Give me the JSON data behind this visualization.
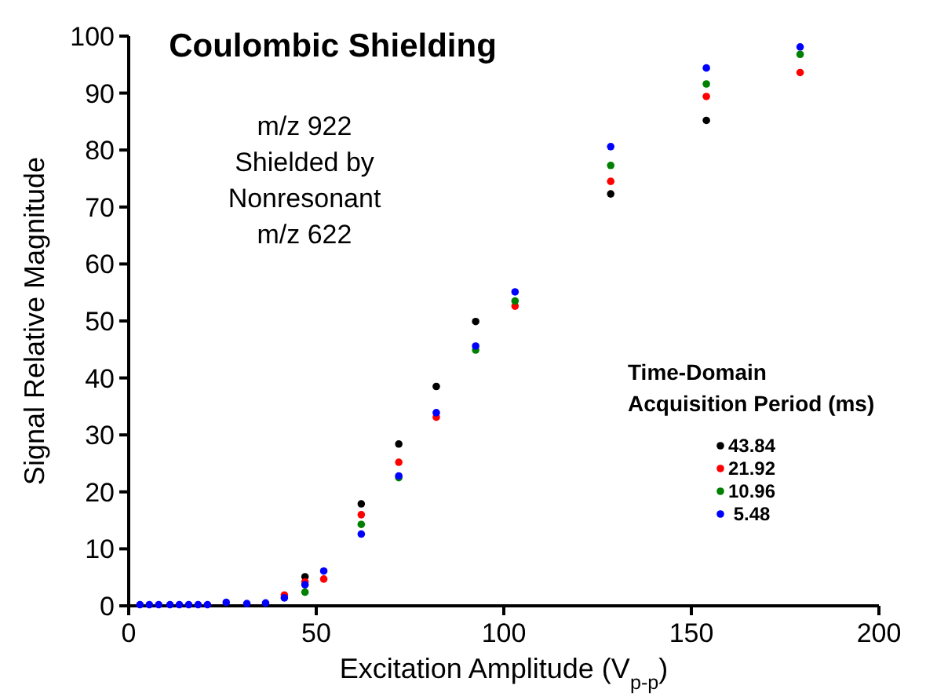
{
  "chart_data": {
    "type": "scatter",
    "title": "Coulombic Shielding",
    "xlabel": "Excitation Amplitude (V$_{p-p}$)",
    "ylabel": "Signal Relative Magnitude",
    "legend_title": "Time-Domain\nAcquisition Period (ms)",
    "legend": "right",
    "marker": "circle",
    "grid": false,
    "annotations": [
      "m/z 922\nShielded by\nNonresonant\nm/z 622"
    ],
    "x": [
      3,
      5.5,
      8,
      11,
      13.5,
      16,
      18.5,
      21,
      26,
      31.5,
      36.5,
      41.5,
      47,
      52,
      62,
      72,
      82,
      92.5,
      103,
      128.5,
      154,
      179
    ],
    "xlim": [
      0,
      200
    ],
    "xticks": [
      0,
      50,
      100,
      150,
      200
    ],
    "ylim": [
      0,
      100
    ],
    "yticks": [
      0,
      10,
      20,
      30,
      40,
      50,
      60,
      70,
      80,
      90,
      100
    ],
    "series": [
      {
        "name": "43.84",
        "color": "#000000",
        "values": [
          null,
          null,
          null,
          null,
          null,
          null,
          null,
          null,
          null,
          null,
          null,
          null,
          5.1,
          null,
          17.9,
          28.4,
          38.5,
          49.9,
          null,
          72.3,
          85.2,
          null
        ]
      },
      {
        "name": "21.92",
        "color": "#ff0000",
        "values": [
          null,
          null,
          null,
          null,
          null,
          null,
          null,
          null,
          null,
          null,
          null,
          1.9,
          4.2,
          4.7,
          16.0,
          25.2,
          33.1,
          null,
          52.6,
          74.5,
          89.4,
          93.6
        ]
      },
      {
        "name": "10.96",
        "color": "#008000",
        "values": [
          null,
          null,
          null,
          null,
          null,
          null,
          null,
          null,
          null,
          null,
          null,
          null,
          2.4,
          null,
          14.3,
          22.5,
          null,
          44.9,
          53.5,
          77.3,
          91.6,
          96.8
        ]
      },
      {
        "name": " 5.48",
        "color": "#0000ff",
        "values": [
          0.2,
          0.2,
          0.2,
          0.2,
          0.2,
          0.2,
          0.2,
          0.2,
          0.6,
          0.4,
          0.5,
          1.4,
          3.7,
          6.1,
          12.6,
          22.8,
          33.9,
          45.6,
          55.1,
          80.6,
          94.4,
          98.1
        ]
      }
    ]
  }
}
